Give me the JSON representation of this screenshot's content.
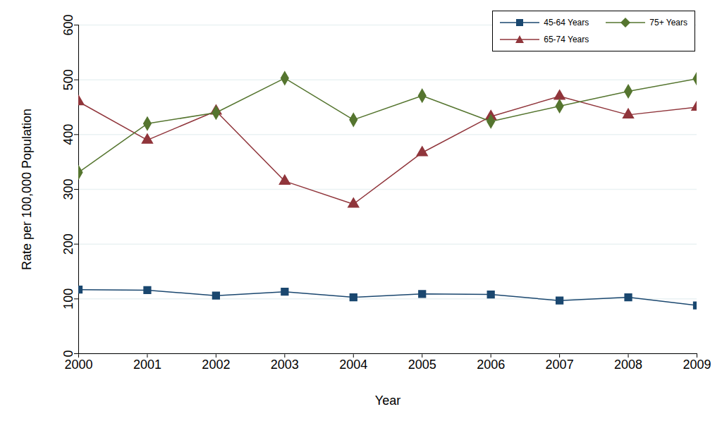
{
  "chart_data": {
    "type": "line",
    "x_label": "Year",
    "y_label": "Rate per 100,000 Population",
    "x": [
      2000,
      2001,
      2002,
      2003,
      2004,
      2005,
      2006,
      2007,
      2008,
      2009
    ],
    "xlim": [
      2000,
      2009
    ],
    "xticks": [
      2000,
      2001,
      2002,
      2003,
      2004,
      2005,
      2006,
      2007,
      2008,
      2009
    ],
    "ylim": [
      0,
      600
    ],
    "yticks": [
      0,
      100,
      200,
      300,
      400,
      500,
      600
    ],
    "grid": true,
    "legend": "top-right",
    "series": [
      {
        "name": "45-64 Years",
        "color": "#1a476f",
        "marker": "square",
        "values": [
          117,
          116,
          106,
          113,
          103,
          109,
          108,
          97,
          103,
          88
        ]
      },
      {
        "name": "65-74 Years",
        "color": "#90353b",
        "marker": "triangle",
        "values": [
          460,
          390,
          443,
          315,
          273,
          367,
          433,
          470,
          436,
          450
        ]
      },
      {
        "name": "75+ Years",
        "color": "#55752f",
        "marker": "diamond",
        "values": [
          331,
          420,
          440,
          503,
          427,
          471,
          424,
          452,
          479,
          502
        ]
      }
    ]
  }
}
